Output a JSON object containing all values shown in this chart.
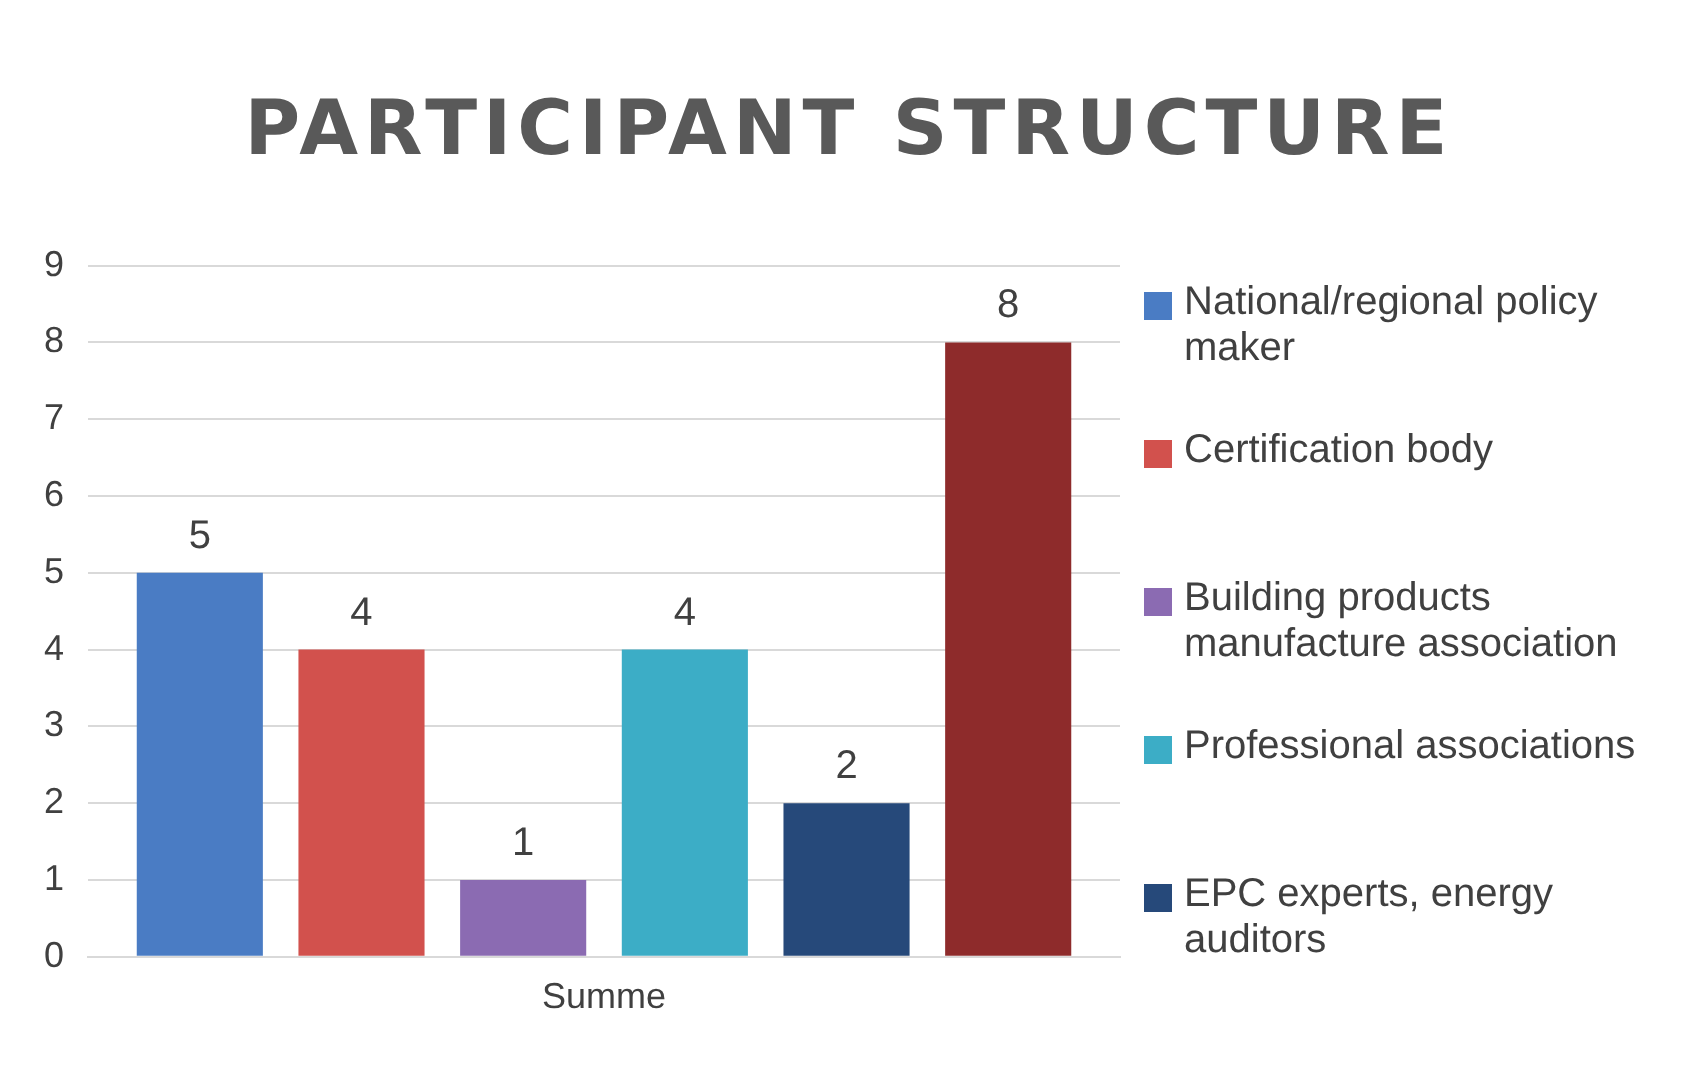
{
  "chart_data": {
    "type": "bar",
    "title": "PARTICIPANT STRUCTURE",
    "categories": [
      "Summe"
    ],
    "series": [
      {
        "name": "National/regional policy maker",
        "color": "#4a7cc4",
        "values": [
          5
        ]
      },
      {
        "name": "Certification body",
        "color": "#d2514d",
        "values": [
          4
        ]
      },
      {
        "name": "Building products manufacture association",
        "color": "#8b6bb2",
        "values": [
          1
        ]
      },
      {
        "name": "Professional associations",
        "color": "#3cadc6",
        "values": [
          4
        ]
      },
      {
        "name": "EPC experts, energy auditors",
        "color": "#26497a",
        "values": [
          2
        ]
      },
      {
        "color": "#8e2b2b",
        "values": [
          8
        ]
      }
    ],
    "ylim": [
      0,
      9
    ],
    "yticks": [
      0,
      1,
      2,
      3,
      4,
      5,
      6,
      7,
      8,
      9
    ],
    "grid": "y",
    "legend": "right",
    "data_labels": true
  }
}
